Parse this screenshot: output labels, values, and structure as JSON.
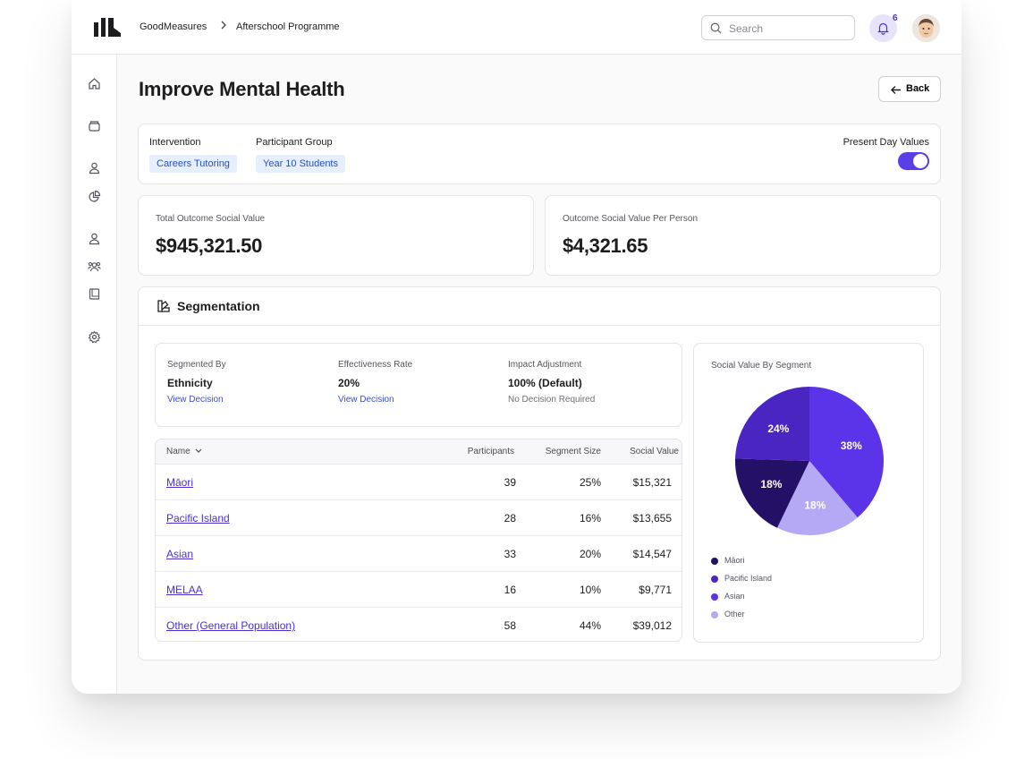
{
  "breadcrumb": {
    "org": "GoodMeasures",
    "program": "Afterschool Programme"
  },
  "search": {
    "placeholder": "Search"
  },
  "notifications": {
    "count": "6"
  },
  "page": {
    "title": "Improve Mental Health",
    "back_label": "Back"
  },
  "filters": {
    "intervention_label": "Intervention",
    "intervention_value": "Careers Tutoring",
    "group_label": "Participant Group",
    "group_value": "Year 10 Students",
    "present_day_label": "Present Day Values",
    "present_day_on": true
  },
  "stats": {
    "total_label": "Total Outcome Social Value",
    "total_value": "$945,321.50",
    "per_person_label": "Outcome Social Value Per Person",
    "per_person_value": "$4,321.65"
  },
  "segmentation": {
    "title": "Segmentation",
    "segmented_by_label": "Segmented By",
    "segmented_by_value": "Ethnicity",
    "segmented_by_link": "View Decision",
    "effectiveness_label": "Effectiveness Rate",
    "effectiveness_value": "20%",
    "effectiveness_link": "View Decision",
    "impact_label": "Impact Adjustment",
    "impact_value": "100% (Default)",
    "impact_note": "No Decision Required",
    "table": {
      "columns": [
        "Name",
        "Participants",
        "Segment Size",
        "Social Value"
      ],
      "rows": [
        {
          "name": "Māori",
          "participants": "39",
          "size": "25%",
          "value": "$15,321"
        },
        {
          "name": "Pacific Island",
          "participants": "28",
          "size": "16%",
          "value": "$13,655"
        },
        {
          "name": "Asian",
          "participants": "33",
          "size": "20%",
          "value": "$14,547"
        },
        {
          "name": "MELAA",
          "participants": "16",
          "size": "10%",
          "value": "$9,771"
        },
        {
          "name": "Other (General Population)",
          "participants": "58",
          "size": "44%",
          "value": "$39,012"
        }
      ]
    }
  },
  "colors": {
    "accent": "#5b3fe6",
    "link": "#4b2fd6"
  },
  "chart_data": {
    "type": "pie",
    "title": "Social Value By Segment",
    "slices": [
      {
        "label": "38%",
        "value": 38,
        "color": "#5b34ea"
      },
      {
        "label": "18%",
        "value": 18,
        "color": "#b5a8f5"
      },
      {
        "label": "18%",
        "value": 18,
        "color": "#231167"
      },
      {
        "label": "24%",
        "value": 24,
        "color": "#4a25c2"
      }
    ],
    "legend": [
      {
        "name": "Māori",
        "color": "#231167"
      },
      {
        "name": "Pacific Island",
        "color": "#4a25c2"
      },
      {
        "name": "Asian",
        "color": "#5b34ea"
      },
      {
        "name": "Other",
        "color": "#b5a8f5"
      }
    ],
    "legend_position": "bottom-left"
  }
}
